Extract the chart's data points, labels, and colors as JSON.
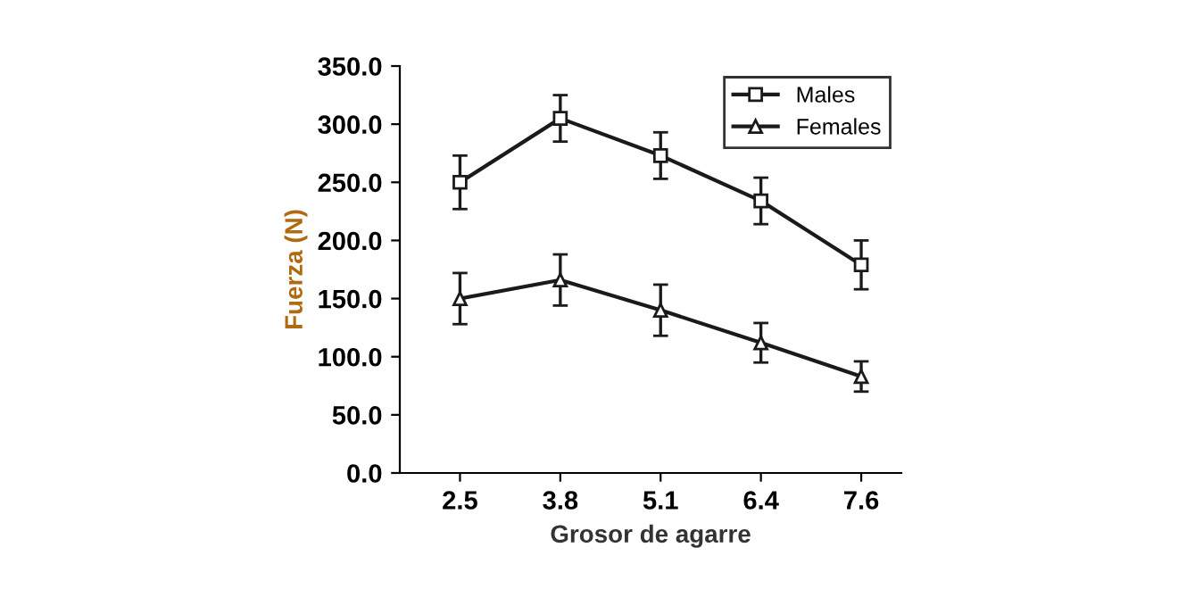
{
  "chart_data": {
    "type": "line",
    "xlabel": "Grosor de agarre",
    "ylabel": "Fuerza (N)",
    "categories": [
      "2.5",
      "3.8",
      "5.1",
      "6.4",
      "7.6"
    ],
    "series": [
      {
        "name": "Males",
        "color": "#1a1a1a",
        "marker": "square",
        "values": [
          250,
          305,
          273,
          234,
          179
        ],
        "errors": [
          23,
          20,
          20,
          20,
          21
        ]
      },
      {
        "name": "Females",
        "color": "#1a1a1a",
        "marker": "triangle",
        "values": [
          150,
          166,
          140,
          112,
          83
        ],
        "errors": [
          22,
          22,
          22,
          17,
          13
        ]
      }
    ],
    "ylim": [
      0,
      350
    ],
    "yticks": [
      {
        "value": 0,
        "label": "0.0"
      },
      {
        "value": 50,
        "label": "50.0"
      },
      {
        "value": 100,
        "label": "100.0"
      },
      {
        "value": 150,
        "label": "150.0"
      },
      {
        "value": 200,
        "label": "200.0"
      },
      {
        "value": 250,
        "label": "250.0"
      },
      {
        "value": 300,
        "label": "300.0"
      },
      {
        "value": 350,
        "label": "350.0"
      }
    ],
    "legend": "top right",
    "grid": false,
    "line_style": "solid"
  }
}
